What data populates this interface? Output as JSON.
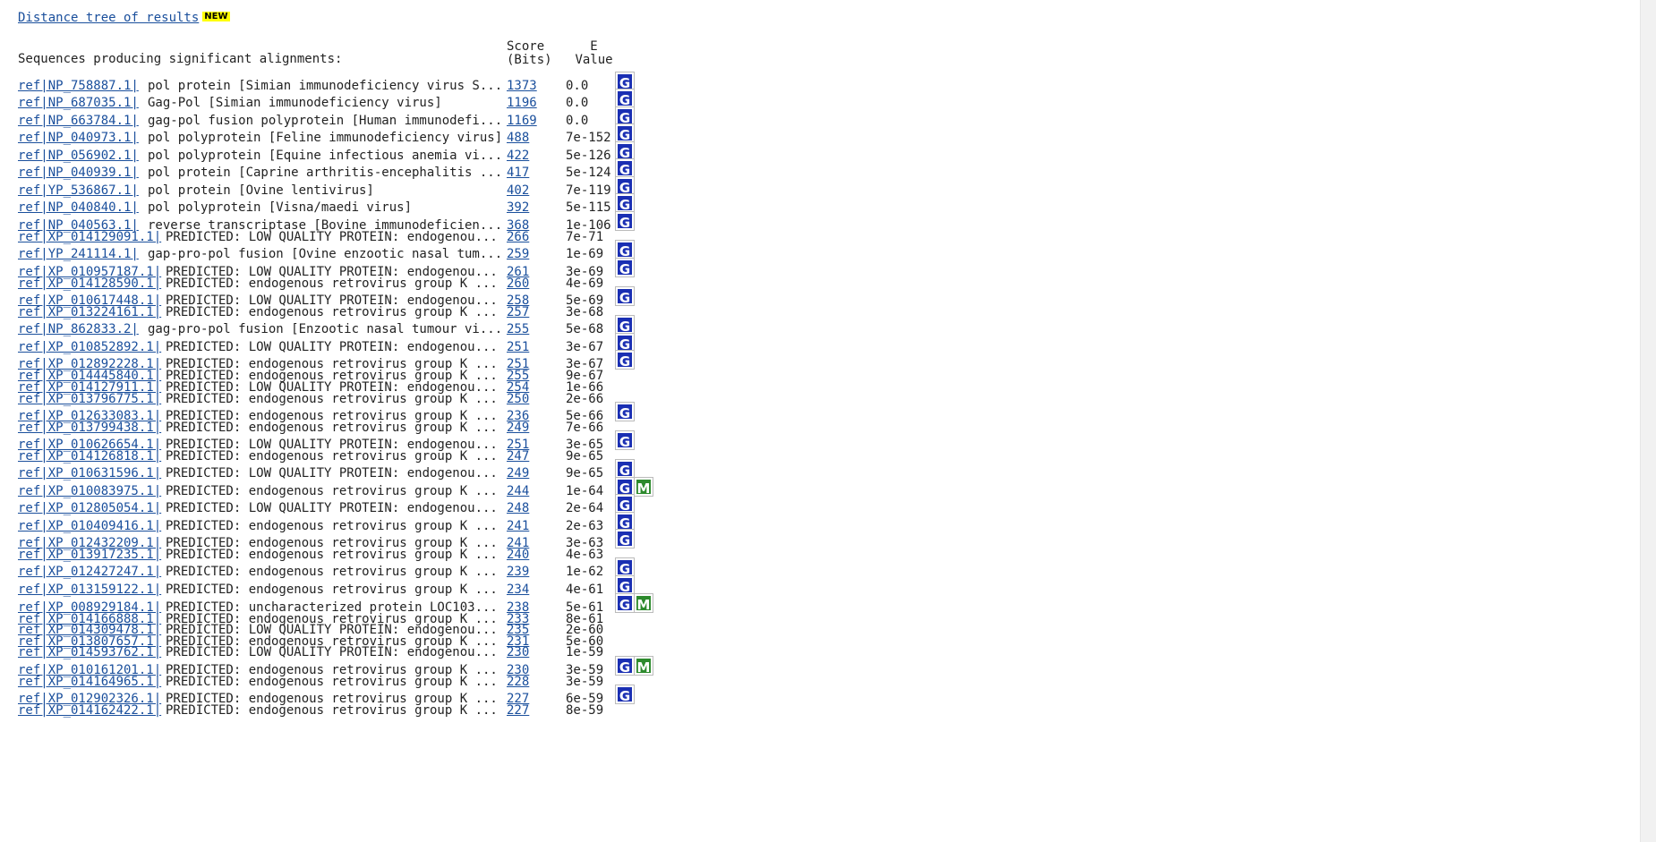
{
  "header": {
    "tree_link": "Distance tree of results",
    "new_badge": "NEW",
    "sequences_label": "Sequences producing significant alignments:",
    "score_label_1": "Score",
    "score_label_2": "(Bits)",
    "evalue_label_1": "E",
    "evalue_label_2": "Value"
  },
  "rows": [
    {
      "acc": "ref|NP_758887.1|",
      "desc": "pol protein [Simian immunodeficiency virus S...",
      "score": "1373",
      "ev": "0.0",
      "icons": [
        "G"
      ]
    },
    {
      "acc": "ref|NP_687035.1|",
      "desc": "Gag-Pol [Simian immunodeficiency virus]",
      "score": "1196",
      "ev": "0.0",
      "icons": [
        "G"
      ]
    },
    {
      "acc": "ref|NP_663784.1|",
      "desc": "gag-pol fusion polyprotein [Human immunodefi...",
      "score": "1169",
      "ev": "0.0",
      "icons": [
        "G"
      ]
    },
    {
      "acc": "ref|NP_040973.1|",
      "desc": "pol polyprotein [Feline immunodeficiency virus]",
      "score": "488",
      "ev": "7e-152",
      "icons": [
        "G"
      ]
    },
    {
      "acc": "ref|NP_056902.1|",
      "desc": "pol polyprotein [Equine infectious anemia vi...",
      "score": "422",
      "ev": "5e-126",
      "icons": [
        "G"
      ]
    },
    {
      "acc": "ref|NP_040939.1|",
      "desc": "pol protein [Caprine arthritis-encephalitis ...",
      "score": "417",
      "ev": "5e-124",
      "icons": [
        "G"
      ]
    },
    {
      "acc": "ref|YP_536867.1|",
      "desc": "pol protein [Ovine lentivirus]",
      "score": "402",
      "ev": "7e-119",
      "icons": [
        "G"
      ]
    },
    {
      "acc": "ref|NP_040840.1|",
      "desc": "pol polyprotein [Visna/maedi virus]",
      "score": "392",
      "ev": "5e-115",
      "icons": [
        "G"
      ]
    },
    {
      "acc": "ref|NP_040563.1|",
      "desc": "reverse transcriptase [Bovine immunodeficien...",
      "score": "368",
      "ev": "1e-106",
      "icons": [
        "G"
      ]
    },
    {
      "acc": "ref|XP_014129091.1|",
      "desc": "PREDICTED: LOW QUALITY PROTEIN: endogenou...",
      "score": "266",
      "ev": "7e-71",
      "icons": []
    },
    {
      "acc": "ref|YP_241114.1|",
      "desc": "gap-pro-pol fusion [Ovine enzootic nasal tum...",
      "score": "259",
      "ev": "1e-69",
      "icons": [
        "G"
      ]
    },
    {
      "acc": "ref|XP_010957187.1|",
      "desc": "PREDICTED: LOW QUALITY PROTEIN: endogenou...",
      "score": "261",
      "ev": "3e-69",
      "icons": [
        "G"
      ]
    },
    {
      "acc": "ref|XP_014128590.1|",
      "desc": "PREDICTED: endogenous retrovirus group K ...",
      "score": "260",
      "ev": "4e-69",
      "icons": []
    },
    {
      "acc": "ref|XP_010617448.1|",
      "desc": "PREDICTED: LOW QUALITY PROTEIN: endogenou...",
      "score": "258",
      "ev": "5e-69",
      "icons": [
        "G"
      ]
    },
    {
      "acc": "ref|XP_013224161.1|",
      "desc": "PREDICTED: endogenous retrovirus group K ...",
      "score": "257",
      "ev": "3e-68",
      "icons": []
    },
    {
      "acc": "ref|NP_862833.2|",
      "desc": "gag-pro-pol fusion [Enzootic nasal tumour vi...",
      "score": "255",
      "ev": "5e-68",
      "icons": [
        "G"
      ]
    },
    {
      "acc": "ref|XP_010852892.1|",
      "desc": "PREDICTED: LOW QUALITY PROTEIN: endogenou...",
      "score": "251",
      "ev": "3e-67",
      "icons": [
        "G"
      ]
    },
    {
      "acc": "ref|XP_012892228.1|",
      "desc": "PREDICTED: endogenous retrovirus group K ...",
      "score": "251",
      "ev": "3e-67",
      "icons": [
        "G"
      ]
    },
    {
      "acc": "ref|XP_014445840.1|",
      "desc": "PREDICTED: endogenous retrovirus group K ...",
      "score": "255",
      "ev": "9e-67",
      "icons": []
    },
    {
      "acc": "ref|XP_014127911.1|",
      "desc": "PREDICTED: LOW QUALITY PROTEIN: endogenou...",
      "score": "254",
      "ev": "1e-66",
      "icons": []
    },
    {
      "acc": "ref|XP_013796775.1|",
      "desc": "PREDICTED: endogenous retrovirus group K ...",
      "score": "250",
      "ev": "2e-66",
      "icons": []
    },
    {
      "acc": "ref|XP_012633083.1|",
      "desc": "PREDICTED: endogenous retrovirus group K ...",
      "score": "236",
      "ev": "5e-66",
      "icons": [
        "G"
      ]
    },
    {
      "acc": "ref|XP_013799438.1|",
      "desc": "PREDICTED: endogenous retrovirus group K ...",
      "score": "249",
      "ev": "7e-66",
      "icons": []
    },
    {
      "acc": "ref|XP_010626654.1|",
      "desc": "PREDICTED: LOW QUALITY PROTEIN: endogenou...",
      "score": "251",
      "ev": "3e-65",
      "icons": [
        "G"
      ]
    },
    {
      "acc": "ref|XP_014126818.1|",
      "desc": "PREDICTED: endogenous retrovirus group K ...",
      "score": "247",
      "ev": "9e-65",
      "icons": []
    },
    {
      "acc": "ref|XP_010631596.1|",
      "desc": "PREDICTED: LOW QUALITY PROTEIN: endogenou...",
      "score": "249",
      "ev": "9e-65",
      "icons": [
        "G"
      ]
    },
    {
      "acc": "ref|XP_010083975.1|",
      "desc": "PREDICTED: endogenous retrovirus group K ...",
      "score": "244",
      "ev": "1e-64",
      "icons": [
        "G",
        "M"
      ]
    },
    {
      "acc": "ref|XP_012805054.1|",
      "desc": "PREDICTED: LOW QUALITY PROTEIN: endogenou...",
      "score": "248",
      "ev": "2e-64",
      "icons": [
        "G"
      ]
    },
    {
      "acc": "ref|XP_010409416.1|",
      "desc": "PREDICTED: endogenous retrovirus group K ...",
      "score": "241",
      "ev": "2e-63",
      "icons": [
        "G"
      ]
    },
    {
      "acc": "ref|XP_012432209.1|",
      "desc": "PREDICTED: endogenous retrovirus group K ...",
      "score": "241",
      "ev": "3e-63",
      "icons": [
        "G"
      ]
    },
    {
      "acc": "ref|XP_013917235.1|",
      "desc": "PREDICTED: endogenous retrovirus group K ...",
      "score": "240",
      "ev": "4e-63",
      "icons": []
    },
    {
      "acc": "ref|XP_012427247.1|",
      "desc": "PREDICTED: endogenous retrovirus group K ...",
      "score": "239",
      "ev": "1e-62",
      "icons": [
        "G"
      ]
    },
    {
      "acc": "ref|XP_013159122.1|",
      "desc": "PREDICTED: endogenous retrovirus group K ...",
      "score": "234",
      "ev": "4e-61",
      "icons": [
        "G"
      ]
    },
    {
      "acc": "ref|XP_008929184.1|",
      "desc": "PREDICTED: uncharacterized protein LOC103...",
      "score": "238",
      "ev": "5e-61",
      "icons": [
        "G",
        "M"
      ]
    },
    {
      "acc": "ref|XP_014166888.1|",
      "desc": "PREDICTED: endogenous retrovirus group K ...",
      "score": "233",
      "ev": "8e-61",
      "icons": []
    },
    {
      "acc": "ref|XP_014309478.1|",
      "desc": "PREDICTED: LOW QUALITY PROTEIN: endogenou...",
      "score": "235",
      "ev": "2e-60",
      "icons": []
    },
    {
      "acc": "ref|XP_013807657.1|",
      "desc": "PREDICTED: endogenous retrovirus group K ...",
      "score": "231",
      "ev": "5e-60",
      "icons": []
    },
    {
      "acc": "ref|XP_014593762.1|",
      "desc": "PREDICTED: LOW QUALITY PROTEIN: endogenou...",
      "score": "230",
      "ev": "1e-59",
      "icons": []
    },
    {
      "acc": "ref|XP_010161201.1|",
      "desc": "PREDICTED: endogenous retrovirus group K ...",
      "score": "230",
      "ev": "3e-59",
      "icons": [
        "G",
        "M"
      ]
    },
    {
      "acc": "ref|XP_014164965.1|",
      "desc": "PREDICTED: endogenous retrovirus group K ...",
      "score": "228",
      "ev": "3e-59",
      "icons": []
    },
    {
      "acc": "ref|XP_012902326.1|",
      "desc": "PREDICTED: endogenous retrovirus group K ...",
      "score": "227",
      "ev": "6e-59",
      "icons": [
        "G"
      ]
    },
    {
      "acc": "ref|XP_014162422.1|",
      "desc": "PREDICTED: endogenous retrovirus group K ...",
      "score": "227",
      "ev": "8e-59",
      "icons": []
    }
  ],
  "colors": {
    "link": "#1a4f9c",
    "g_icon": "#1a2fb3",
    "m_icon": "#2d8a2d",
    "badge": "#ffff00"
  }
}
